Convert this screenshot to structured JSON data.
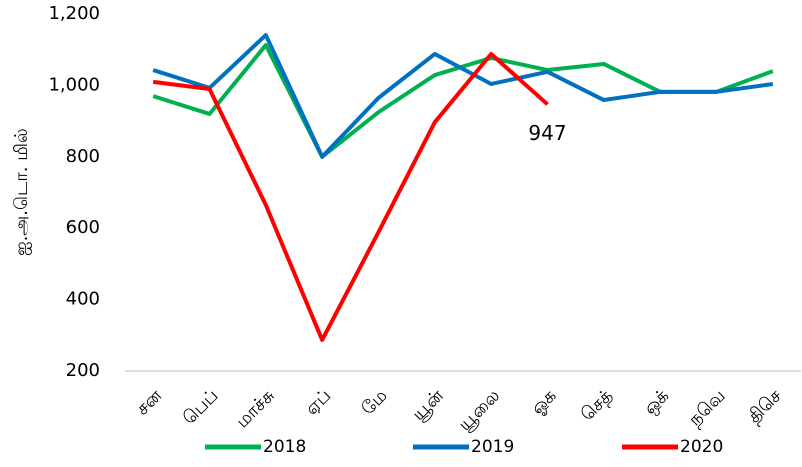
{
  "chart_data": {
    "type": "line",
    "y_label": "ஐ.அ.டொ. மில்",
    "categories": [
      "சன",
      "பெப்",
      "மாச்சு",
      "ஏப்",
      "மே",
      "யூன்",
      "யூலை",
      "ஓக",
      "செத்",
      "ஒக்",
      "நவெ",
      "திசெ"
    ],
    "series": [
      {
        "name": "2018",
        "color": "#00b050",
        "values": [
          970,
          920,
          1113,
          800,
          925,
          1029,
          1077,
          1043,
          1060,
          982,
          982,
          1040
        ]
      },
      {
        "name": "2019",
        "color": "#0070c0",
        "values": [
          1043,
          993,
          1141,
          800,
          965,
          1088,
          1004,
          1038,
          959,
          982,
          982,
          1004
        ]
      },
      {
        "name": "2020",
        "color": "#ff0000",
        "values": [
          1010,
          990,
          665,
          287,
          589,
          897,
          1088,
          947,
          null,
          null,
          null,
          null
        ],
        "value_labels": [
          null,
          null,
          null,
          null,
          null,
          null,
          null,
          "947",
          null,
          null,
          null,
          null
        ]
      }
    ],
    "ylim": [
      200,
      1200
    ],
    "yticks": [
      200,
      400,
      600,
      800,
      {
        "value": 1000,
        "label": "1,000"
      },
      {
        "value": 1200,
        "label": "1,200"
      }
    ],
    "legend": "bottom"
  }
}
